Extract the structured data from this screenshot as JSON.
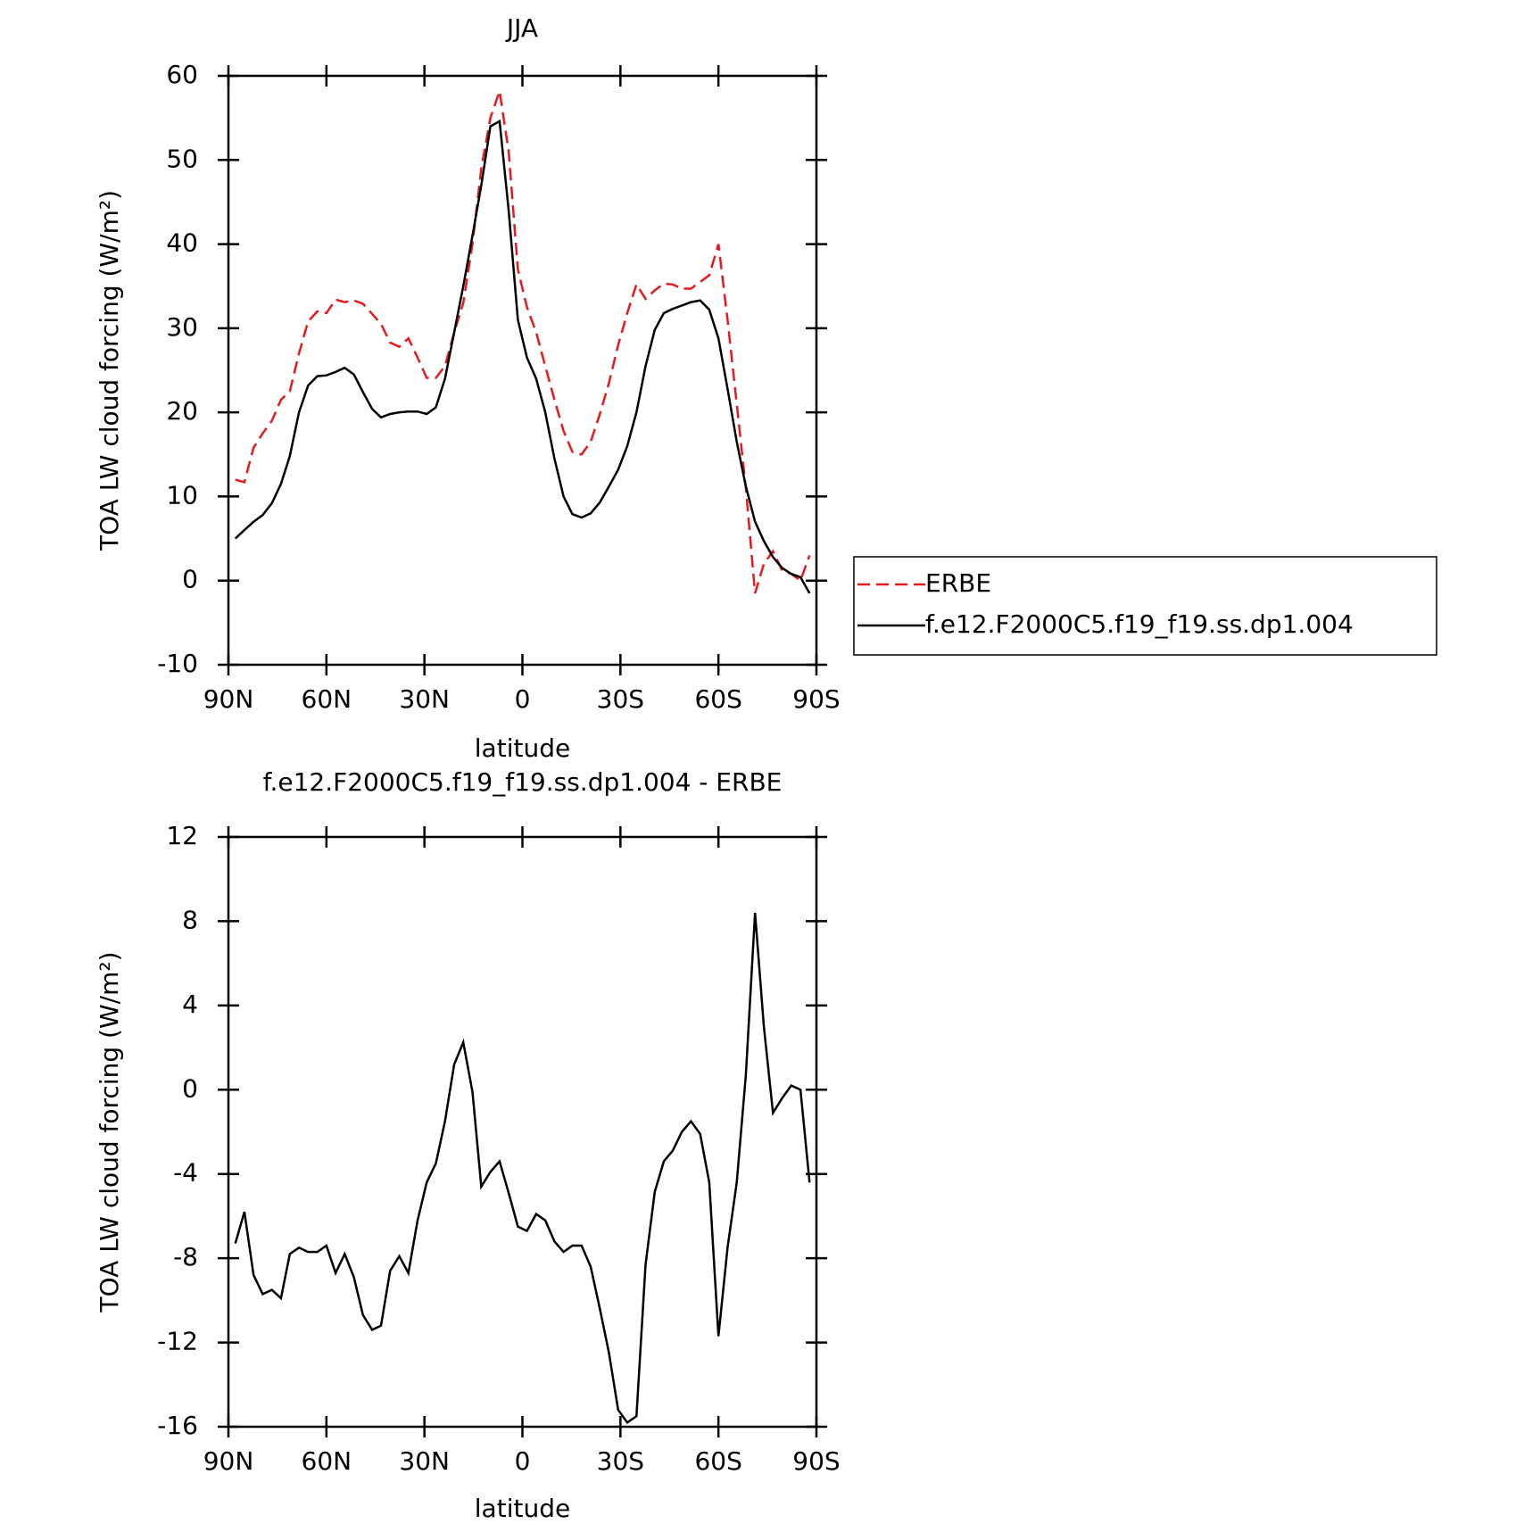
{
  "chart_data": [
    {
      "type": "line",
      "title": "JJA",
      "x_label": "latitude",
      "y_label": "TOA LW cloud forcing (W/m²)",
      "x": [
        87.9,
        85.1,
        82.3,
        79.5,
        76.7,
        73.9,
        71.2,
        68.4,
        65.6,
        62.8,
        60.0,
        57.2,
        54.4,
        51.6,
        48.8,
        46.0,
        43.3,
        40.5,
        37.7,
        34.9,
        32.1,
        29.3,
        26.5,
        23.7,
        20.9,
        18.1,
        15.3,
        12.6,
        9.8,
        7.0,
        4.2,
        1.4,
        -1.4,
        -4.2,
        -7.0,
        -9.8,
        -12.6,
        -15.3,
        -18.1,
        -20.9,
        -23.7,
        -26.5,
        -29.3,
        -32.1,
        -34.9,
        -37.7,
        -40.5,
        -43.3,
        -46.0,
        -48.8,
        -51.6,
        -54.4,
        -57.2,
        -60.0,
        -62.8,
        -65.6,
        -68.4,
        -71.2,
        -73.9,
        -76.7,
        -79.5,
        -82.3,
        -85.1,
        -87.9
      ],
      "series": [
        {
          "name": "ERBE",
          "color": "#e8191e",
          "style": "dashed",
          "values": [
            12.0,
            11.7,
            15.8,
            17.5,
            19,
            21.5,
            22.5,
            27,
            30.8,
            32,
            31.8,
            33.4,
            33.1,
            33.3,
            32.9,
            31.7,
            30.5,
            28.3,
            27.8,
            28.8,
            26.5,
            24.1,
            24.1,
            25.5,
            29.5,
            33,
            40,
            49,
            55,
            58.2,
            51,
            37,
            32.5,
            29.5,
            25.5,
            21.5,
            17.8,
            15.3,
            15,
            16.5,
            19.8,
            23.5,
            28,
            31.8,
            35.2,
            33.5,
            34.5,
            35.3,
            35.2,
            34.7,
            34.7,
            35.5,
            36.3,
            40,
            31,
            21,
            11,
            -1.5,
            2,
            3.5,
            1.2,
            0.8,
            0,
            3.0
          ]
        },
        {
          "name": "f.e12.F2000C5.f19_f19.ss.dp1.004",
          "color": "#000000",
          "style": "solid",
          "values": [
            5.0,
            6.0,
            7.0,
            7.8,
            9.2,
            11.5,
            14.8,
            20,
            23.2,
            24.3,
            24.4,
            24.8,
            25.3,
            24.5,
            22.4,
            20.4,
            19.4,
            19.8,
            20.0,
            20.1,
            20.1,
            19.8,
            20.6,
            24,
            29.5,
            35,
            41,
            47,
            54,
            54.6,
            44,
            31,
            26.5,
            24,
            20,
            14.5,
            10,
            7.9,
            7.5,
            8.0,
            9.3,
            11.2,
            13.2,
            16,
            20,
            25.5,
            29.8,
            31.8,
            32.3,
            32.7,
            33.1,
            33.3,
            32.2,
            28.8,
            22.8,
            16.5,
            11.2,
            7.0,
            4.7,
            2.8,
            1.5,
            0.8,
            0.4,
            -1.5
          ]
        }
      ],
      "xlim": [
        90,
        -90
      ],
      "xticks": [
        {
          "value": 90,
          "label": "90N"
        },
        {
          "value": 60,
          "label": "60N"
        },
        {
          "value": 30,
          "label": "30N"
        },
        0,
        {
          "value": -30,
          "label": "30S"
        },
        {
          "value": -60,
          "label": "60S"
        },
        {
          "value": -90,
          "label": "90S"
        }
      ],
      "ylim": [
        -10,
        60
      ],
      "yticks": [
        -10,
        0,
        10,
        20,
        30,
        40,
        50,
        60
      ],
      "legend": "right"
    },
    {
      "type": "line",
      "title": "f.e12.F2000C5.f19_f19.ss.dp1.004 - ERBE",
      "x_label": "latitude",
      "y_label": "TOA LW cloud forcing (W/m²)",
      "x": [
        87.9,
        85.1,
        82.3,
        79.5,
        76.7,
        73.9,
        71.2,
        68.4,
        65.6,
        62.8,
        60.0,
        57.2,
        54.4,
        51.6,
        48.8,
        46.0,
        43.3,
        40.5,
        37.7,
        34.9,
        32.1,
        29.3,
        26.5,
        23.7,
        20.9,
        18.1,
        15.3,
        12.6,
        9.8,
        7.0,
        4.2,
        1.4,
        -1.4,
        -4.2,
        -7.0,
        -9.8,
        -12.6,
        -15.3,
        -18.1,
        -20.9,
        -23.7,
        -26.5,
        -29.3,
        -32.1,
        -34.9,
        -37.7,
        -40.5,
        -43.3,
        -46.0,
        -48.8,
        -51.6,
        -54.4,
        -57.2,
        -60.0,
        -62.8,
        -65.6,
        -68.4,
        -71.2,
        -73.9,
        -76.7,
        -79.5,
        -82.3,
        -85.1,
        -87.9
      ],
      "series": [
        {
          "color": "#000000",
          "style": "solid",
          "values": [
            -7.3,
            -5.8,
            -8.8,
            -9.7,
            -9.5,
            -9.9,
            -7.8,
            -7.5,
            -7.7,
            -7.7,
            -7.4,
            -8.7,
            -7.8,
            -8.9,
            -10.7,
            -11.4,
            -11.2,
            -8.6,
            -7.9,
            -8.7,
            -6.2,
            -4.4,
            -3.5,
            -1.5,
            1.2,
            2.25,
            -0.1,
            -4.6,
            -3.9,
            -3.4,
            -4.9,
            -6.5,
            -6.7,
            -5.9,
            -6.2,
            -7.2,
            -7.7,
            -7.4,
            -7.4,
            -8.4,
            -10.4,
            -12.5,
            -15.2,
            -15.8,
            -15.5,
            -8.3,
            -4.85,
            -3.4,
            -2.9,
            -2.0,
            -1.5,
            -2.1,
            -4.4,
            -11.7,
            -7.5,
            -4.4,
            0.7,
            8.4,
            3.0,
            -1.1,
            -0.4,
            0.2,
            0,
            -4.4
          ]
        }
      ],
      "xlim": [
        90,
        -90
      ],
      "xticks": [
        {
          "value": 90,
          "label": "90N"
        },
        {
          "value": 60,
          "label": "60N"
        },
        {
          "value": 30,
          "label": "30N"
        },
        0,
        {
          "value": -30,
          "label": "30S"
        },
        {
          "value": -60,
          "label": "60S"
        },
        {
          "value": -90,
          "label": "90S"
        }
      ],
      "ylim": [
        -16,
        12
      ],
      "yticks": [
        -16,
        -12,
        -8,
        -4,
        0,
        4,
        8,
        12
      ]
    }
  ]
}
